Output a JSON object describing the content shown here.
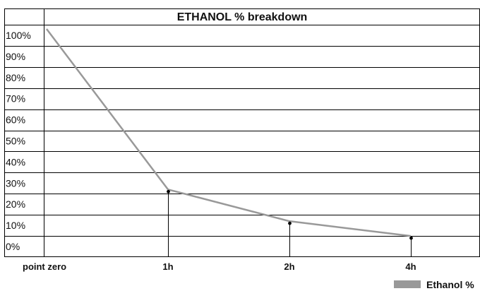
{
  "chart_data": {
    "type": "line",
    "title": "ETHANOL % breakdown",
    "categories": [
      "point zero",
      "1h",
      "2h",
      "4h"
    ],
    "y_tick_labels": [
      "100%",
      "90%",
      "80%",
      "70%",
      "60%",
      "50%",
      "40%",
      "30%",
      "20%",
      "10%",
      "0%"
    ],
    "ylim": [
      0,
      100
    ],
    "ytick_step": 10,
    "grid": true,
    "series": [
      {
        "name": "Ethanol %",
        "values": [
          103,
          27,
          12,
          5
        ],
        "color": "#999999"
      }
    ],
    "markers": {
      "color": "#000000",
      "shown_for": [
        "1h",
        "2h",
        "4h"
      ]
    },
    "legend": {
      "position": "bottom-right",
      "label": "Ethanol %"
    }
  }
}
